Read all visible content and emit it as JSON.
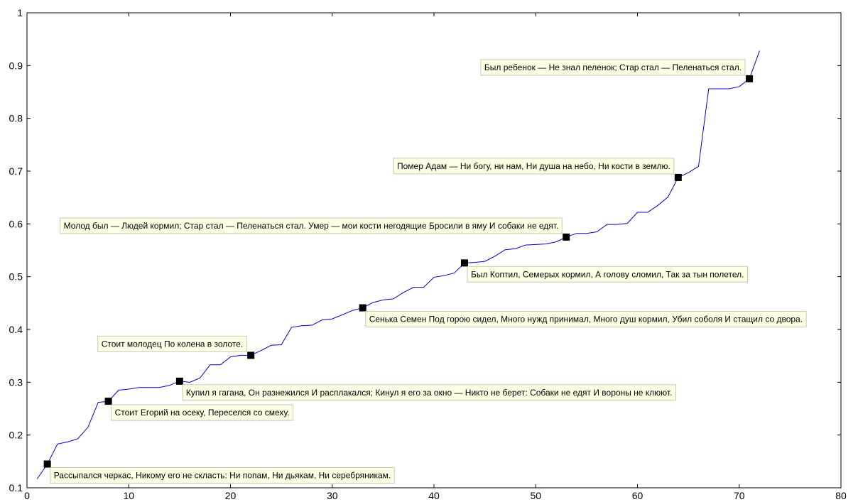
{
  "chart_data": {
    "type": "line",
    "title": "",
    "xlabel": "",
    "ylabel": "",
    "xlim": [
      0,
      80
    ],
    "ylim": [
      0.1,
      1
    ],
    "xticks": [
      0,
      10,
      20,
      30,
      40,
      50,
      60,
      70,
      80
    ],
    "yticks": [
      0.1,
      0.2,
      0.3,
      0.4,
      0.5,
      0.6,
      0.7,
      0.8,
      0.9,
      1
    ],
    "xtick_labels": [
      "0",
      "10",
      "20",
      "30",
      "40",
      "50",
      "60",
      "70",
      "80"
    ],
    "ytick_labels": [
      "0.1",
      "0.2",
      "0.3",
      "0.4",
      "0.5",
      "0.6",
      "0.7",
      "0.8",
      "0.9",
      "1"
    ],
    "grid": false,
    "line_color": "#0000cc",
    "marker_color": "#000000",
    "series": [
      {
        "x": [
          1,
          2,
          3,
          4,
          5,
          6,
          7,
          8,
          9,
          10,
          11,
          12,
          13,
          14,
          15,
          16,
          17,
          18,
          19,
          20,
          21,
          22,
          23,
          24,
          25,
          26,
          27,
          28,
          29,
          30,
          31,
          32,
          33,
          34,
          35,
          36,
          37,
          38,
          39,
          40,
          41,
          42,
          43,
          44,
          45,
          46,
          47,
          48,
          49,
          50,
          51,
          52,
          53,
          54,
          55,
          56,
          57,
          58,
          59,
          60,
          61,
          62,
          63,
          64,
          65,
          66,
          67,
          68,
          69,
          70,
          71,
          72
        ],
        "y": [
          0.117,
          0.145,
          0.183,
          0.187,
          0.193,
          0.215,
          0.262,
          0.264,
          0.285,
          0.287,
          0.29,
          0.29,
          0.29,
          0.294,
          0.302,
          0.3,
          0.308,
          0.333,
          0.333,
          0.348,
          0.351,
          0.351,
          0.36,
          0.37,
          0.371,
          0.404,
          0.407,
          0.408,
          0.418,
          0.42,
          0.428,
          0.436,
          0.441,
          0.451,
          0.456,
          0.458,
          0.47,
          0.48,
          0.48,
          0.499,
          0.502,
          0.507,
          0.526,
          0.527,
          0.529,
          0.539,
          0.551,
          0.553,
          0.56,
          0.561,
          0.562,
          0.566,
          0.575,
          0.582,
          0.582,
          0.585,
          0.599,
          0.599,
          0.601,
          0.622,
          0.622,
          0.635,
          0.651,
          0.688,
          0.697,
          0.709,
          0.856,
          0.856,
          0.856,
          0.86,
          0.875,
          0.928
        ]
      }
    ],
    "annotations": [
      {
        "x": 2,
        "y": 0.145,
        "text": "Рассыпался черкас, Никому его не скласть: Ни попам, Ни дьякам, Ни серебряникам.",
        "place": "below-right"
      },
      {
        "x": 8,
        "y": 0.264,
        "text": "Стоит Егорий на осеку, Переселся со смеху.",
        "place": "below-right"
      },
      {
        "x": 15,
        "y": 0.302,
        "text": "Купил я гагана, Он разнежился И расплакался; Кинул я его за окно — Никто не берет: Собаки не едят И вороны не клюют.",
        "place": "below-right"
      },
      {
        "x": 22,
        "y": 0.351,
        "text": "Стоит молодец По колена в золоте.",
        "place": "above-left"
      },
      {
        "x": 33,
        "y": 0.441,
        "text": "Сенька Семен Под горою сидел, Много нужд принимал, Много душ кормил, Убил соболя И стащил со двора.",
        "place": "below-right"
      },
      {
        "x": 43,
        "y": 0.526,
        "text": "Был Коптил, Семерых кормил, А голову сломил, Так за тын полетел.",
        "place": "below-right"
      },
      {
        "x": 53,
        "y": 0.575,
        "text": "Молод был — Людей кормил; Стар стал — Пеленаться стал. Умер — мои кости негодящие Бросили в яму И собаки не едят.",
        "place": "above-left"
      },
      {
        "x": 64,
        "y": 0.688,
        "text": "Помер Адам — Ни богу, ни нам, Ни душа на небо, Ни кости в землю.",
        "place": "above-left"
      },
      {
        "x": 71,
        "y": 0.875,
        "text": "Был ребенок — Не знал пеленок; Стар стал — Пеленаться стал.",
        "place": "above-left"
      }
    ]
  }
}
